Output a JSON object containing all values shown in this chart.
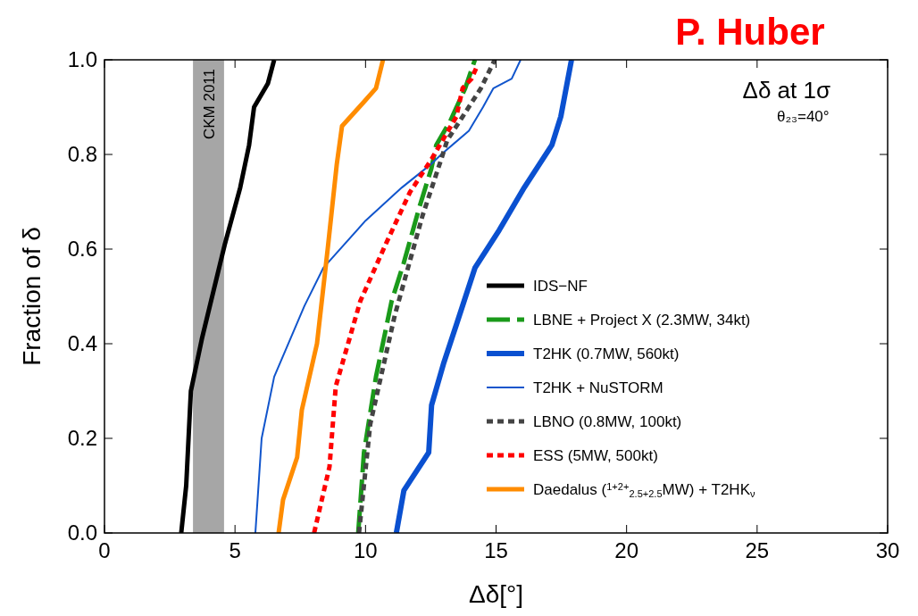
{
  "chart_data": {
    "type": "line",
    "title": "P. Huber",
    "xlabel": "Δδ[°]",
    "ylabel": "Fraction of δ",
    "xlim": [
      0,
      30
    ],
    "ylim": [
      0,
      1
    ],
    "xticks": [
      0,
      5,
      10,
      15,
      20,
      25,
      30
    ],
    "yticks": [
      {
        "value": 0,
        "label": "0.0"
      },
      {
        "value": 0.2,
        "label": "0.2"
      },
      {
        "value": 0.4,
        "label": "0.4"
      },
      {
        "value": 0.6,
        "label": "0.6"
      },
      {
        "value": 0.8,
        "label": "0.8"
      },
      {
        "value": 1,
        "label": "1.0"
      }
    ],
    "grid": false,
    "legend": "right",
    "annotations": [
      "Δδ at 1σ",
      "θ₂₃=40°"
    ],
    "bands": [
      {
        "axis": "x",
        "from": 3.39,
        "to": 4.58,
        "label": "CKM 2011",
        "color": "#a6a6a6"
      }
    ],
    "series": [
      {
        "name": "IDS−NF",
        "color": "#000000",
        "line_style": "solid",
        "x": [
          2.94,
          3.13,
          3.31,
          3.73,
          4.61,
          5.2,
          5.54,
          5.73,
          6.26,
          6.5
        ],
        "values": [
          0,
          0.1,
          0.3,
          0.41,
          0.61,
          0.73,
          0.82,
          0.9,
          0.95,
          1
        ]
      },
      {
        "name": "LBNE + Project X (2.3MW, 34kt)",
        "color": "#1a9a1a",
        "line_style": "dashed",
        "x": [
          9.72,
          9.94,
          10.4,
          11.0,
          11.46,
          12.07,
          12.52,
          12.71,
          13.24,
          13.82,
          14.19
        ],
        "values": [
          0,
          0.17,
          0.33,
          0.49,
          0.57,
          0.69,
          0.77,
          0.82,
          0.87,
          0.94,
          1
        ]
      },
      {
        "name": "T2HK (0.7MW, 560kt)",
        "color": "#0a50d0",
        "line_style": "solid",
        "x": [
          11.18,
          11.47,
          12.42,
          12.53,
          13.0,
          13.48,
          14.19,
          15.12,
          16.08,
          17.14,
          17.48,
          17.89
        ],
        "values": [
          0,
          0.09,
          0.17,
          0.27,
          0.36,
          0.44,
          0.56,
          0.64,
          0.73,
          0.82,
          0.88,
          1
        ]
      },
      {
        "name": "T2HK + NuSTORM",
        "color": "#1155cc",
        "line_style": "solid",
        "x": [
          5.78,
          6.02,
          6.5,
          7.66,
          8.38,
          10.0,
          11.39,
          12.52,
          12.9,
          13.96,
          14.5,
          14.9,
          15.6,
          15.94
        ],
        "values": [
          0,
          0.2,
          0.33,
          0.48,
          0.56,
          0.66,
          0.73,
          0.78,
          0.8,
          0.85,
          0.9,
          0.94,
          0.96,
          1
        ]
      },
      {
        "name": "LBNO (0.8MW, 100kt)",
        "color": "#444444",
        "line_style": "dotted",
        "x": [
          9.75,
          10.18,
          11.12,
          12.18,
          12.9,
          13.13,
          13.72,
          14.42,
          14.95
        ],
        "values": [
          0,
          0.23,
          0.46,
          0.67,
          0.79,
          0.83,
          0.88,
          0.94,
          1
        ]
      },
      {
        "name": "ESS (5MW, 500kt)",
        "color": "#ff0000",
        "line_style": "dotted",
        "x": [
          8.03,
          8.62,
          8.86,
          9.8,
          10.77,
          11.7,
          12.53,
          13.48,
          13.72,
          14.06,
          14.3
        ],
        "values": [
          0,
          0.14,
          0.31,
          0.49,
          0.61,
          0.72,
          0.79,
          0.88,
          0.94,
          0.96,
          0.99
        ]
      },
      {
        "name": "Daedalus ($^{1+2+}$$_{2.5+2.5}$MW) + T2HK$_{ν}$",
        "color": "#ff8c00",
        "line_style": "solid",
        "x": [
          6.67,
          6.84,
          7.38,
          7.56,
          8.14,
          8.55,
          8.9,
          9.1,
          9.92,
          10.4,
          10.67
        ],
        "values": [
          0,
          0.07,
          0.16,
          0.26,
          0.4,
          0.6,
          0.78,
          0.86,
          0.91,
          0.94,
          1
        ]
      }
    ]
  }
}
